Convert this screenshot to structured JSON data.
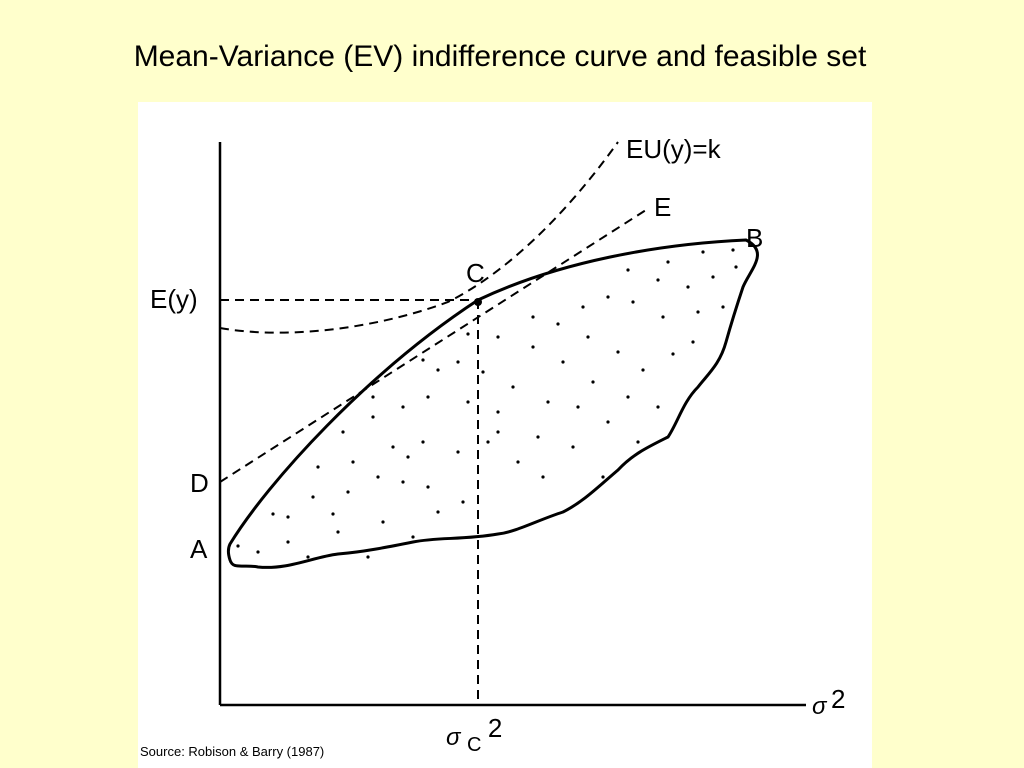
{
  "title": "Mean-Variance (EV) indifference curve and feasible set",
  "source": "Source: Robison & Barry (1987)",
  "labels": {
    "eu_curve": "EU(y)=k",
    "tangent_line": "E",
    "point_b": "B",
    "point_c": "C",
    "point_d": "D",
    "point_a": "A",
    "y_tick": "E(y)",
    "x_axis_symbol": "σ",
    "x_axis_exponent": "2",
    "x_tick_symbol": "σ",
    "x_tick_sub": "C",
    "x_tick_exponent": "2"
  },
  "colors": {
    "background": "#ffffcc",
    "panel": "#ffffff",
    "ink": "#000000"
  }
}
